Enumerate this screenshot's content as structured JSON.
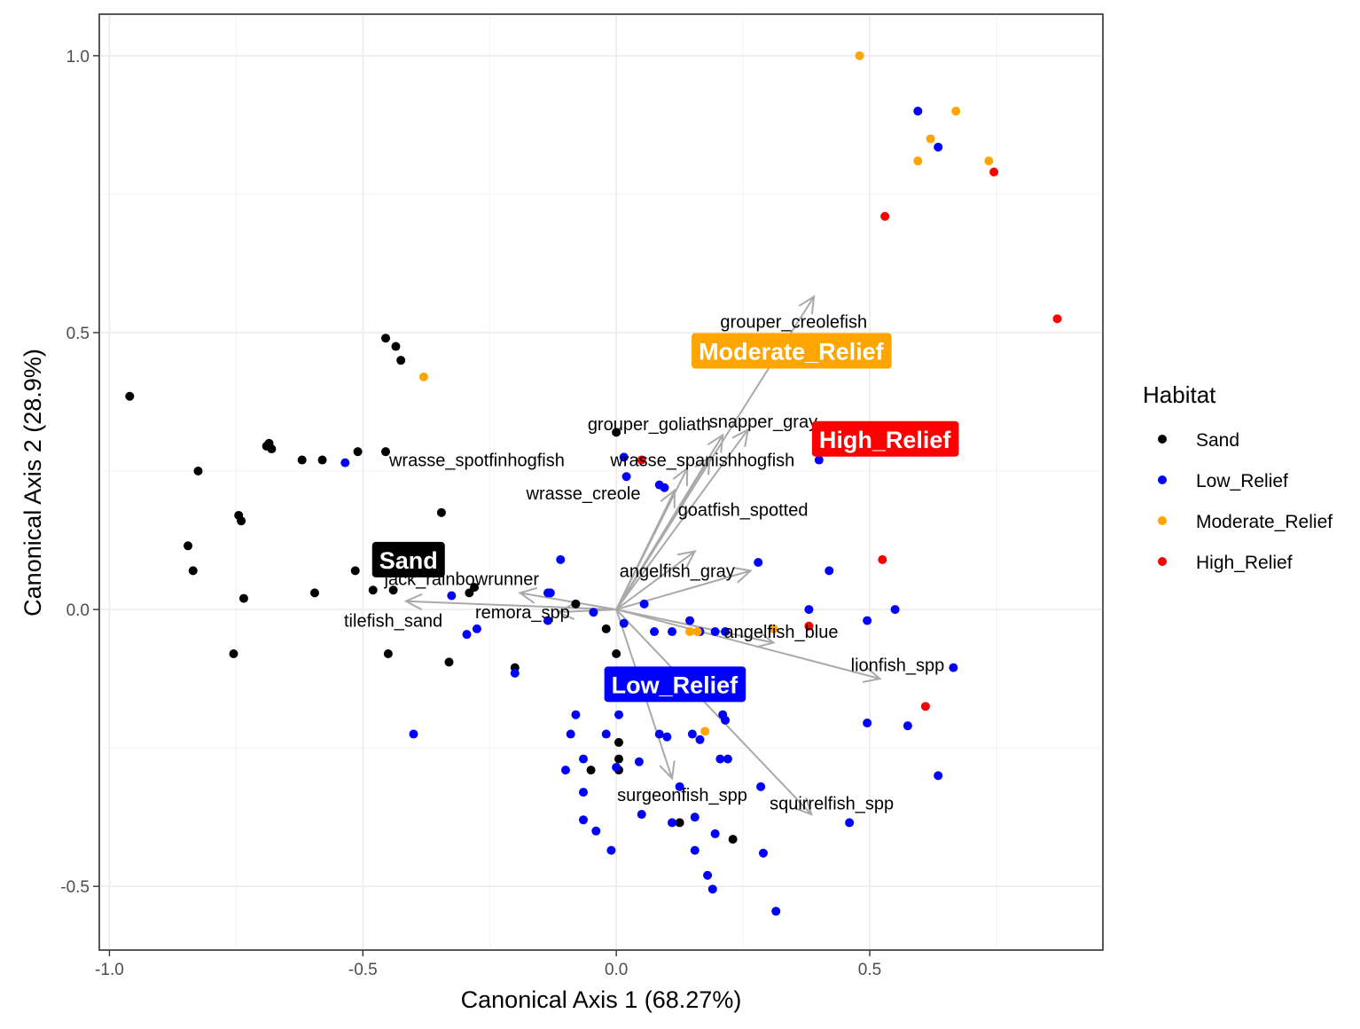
{
  "chart_data": {
    "type": "scatter",
    "title": "",
    "xlabel": "Canonical Axis 1 (68.27%)",
    "ylabel": "Canonical Axis 2 (28.9%)",
    "xlim": [
      -1.02,
      0.96
    ],
    "ylim": [
      -0.615,
      1.075
    ],
    "xticks": [
      -1.0,
      -0.5,
      0.0,
      0.5
    ],
    "xtick_labels": [
      "-1.0",
      "-0.5",
      "0.0",
      "0.5"
    ],
    "yticks": [
      -0.5,
      0.0,
      0.5,
      1.0
    ],
    "ytick_labels": [
      "-0.5",
      "0.0",
      "0.5",
      "1.0"
    ],
    "grid": true,
    "legend": {
      "title": "Habitat",
      "position": "right",
      "entries": [
        {
          "name": "Sand",
          "color": "#000000"
        },
        {
          "name": "Low_Relief",
          "color": "#0000ff"
        },
        {
          "name": "Moderate_Relief",
          "color": "#ffa500"
        },
        {
          "name": "High_Relief",
          "color": "#ff0000"
        }
      ]
    },
    "series": [
      {
        "name": "Sand",
        "color": "#000000",
        "points": [
          [
            -0.96,
            0.385
          ],
          [
            -0.825,
            0.25
          ],
          [
            -0.845,
            0.115
          ],
          [
            -0.835,
            0.07
          ],
          [
            -0.745,
            0.17
          ],
          [
            -0.74,
            0.16
          ],
          [
            -0.735,
            0.02
          ],
          [
            -0.755,
            -0.08
          ],
          [
            -0.685,
            0.3
          ],
          [
            -0.69,
            0.295
          ],
          [
            -0.68,
            0.29
          ],
          [
            -0.62,
            0.27
          ],
          [
            -0.58,
            0.27
          ],
          [
            -0.595,
            0.03
          ],
          [
            -0.51,
            0.285
          ],
          [
            -0.515,
            0.07
          ],
          [
            -0.48,
            0.035
          ],
          [
            -0.455,
            0.49
          ],
          [
            -0.435,
            0.475
          ],
          [
            -0.425,
            0.45
          ],
          [
            -0.455,
            0.285
          ],
          [
            -0.44,
            0.035
          ],
          [
            -0.45,
            -0.08
          ],
          [
            -0.345,
            0.175
          ],
          [
            -0.33,
            -0.095
          ],
          [
            -0.29,
            0.03
          ],
          [
            -0.28,
            0.04
          ],
          [
            -0.2,
            -0.105
          ],
          [
            -0.08,
            0.01
          ],
          [
            -0.02,
            -0.035
          ],
          [
            0.0,
            0.32
          ],
          [
            0.0,
            -0.08
          ],
          [
            0.005,
            -0.24
          ],
          [
            0.005,
            -0.27
          ],
          [
            -0.05,
            -0.29
          ],
          [
            0.005,
            -0.29
          ],
          [
            0.125,
            -0.385
          ],
          [
            0.23,
            -0.415
          ]
        ]
      },
      {
        "name": "Low_Relief",
        "color": "#0000ff",
        "points": [
          [
            -0.535,
            0.265
          ],
          [
            -0.325,
            0.025
          ],
          [
            -0.295,
            -0.045
          ],
          [
            -0.275,
            -0.035
          ],
          [
            -0.2,
            -0.115
          ],
          [
            -0.4,
            -0.225
          ],
          [
            -0.135,
            0.03
          ],
          [
            -0.13,
            0.03
          ],
          [
            -0.11,
            0.09
          ],
          [
            -0.135,
            -0.02
          ],
          [
            -0.045,
            -0.005
          ],
          [
            0.015,
            0.275
          ],
          [
            0.02,
            0.24
          ],
          [
            0.085,
            0.225
          ],
          [
            0.095,
            0.22
          ],
          [
            0.055,
            0.01
          ],
          [
            0.015,
            -0.025
          ],
          [
            0.075,
            -0.04
          ],
          [
            0.11,
            -0.04
          ],
          [
            0.145,
            -0.02
          ],
          [
            0.165,
            -0.04
          ],
          [
            0.195,
            -0.04
          ],
          [
            0.215,
            -0.04
          ],
          [
            0.28,
            0.085
          ],
          [
            0.38,
            0.0
          ],
          [
            0.42,
            0.07
          ],
          [
            0.4,
            0.27
          ],
          [
            0.495,
            -0.02
          ],
          [
            0.55,
            0.0
          ],
          [
            0.665,
            -0.105
          ],
          [
            0.495,
            -0.205
          ],
          [
            0.575,
            -0.21
          ],
          [
            0.635,
            -0.3
          ],
          [
            0.46,
            -0.385
          ],
          [
            0.595,
            0.9
          ],
          [
            0.635,
            0.835
          ],
          [
            -0.08,
            -0.19
          ],
          [
            -0.09,
            -0.225
          ],
          [
            0.005,
            -0.19
          ],
          [
            -0.02,
            -0.225
          ],
          [
            -0.065,
            -0.27
          ],
          [
            -0.1,
            -0.29
          ],
          [
            -0.065,
            -0.33
          ],
          [
            0.0,
            -0.285
          ],
          [
            0.045,
            -0.275
          ],
          [
            0.085,
            -0.225
          ],
          [
            0.1,
            -0.23
          ],
          [
            0.15,
            -0.225
          ],
          [
            0.165,
            -0.235
          ],
          [
            0.21,
            -0.19
          ],
          [
            0.215,
            -0.2
          ],
          [
            0.205,
            -0.27
          ],
          [
            0.22,
            -0.27
          ],
          [
            0.125,
            -0.32
          ],
          [
            0.285,
            -0.32
          ],
          [
            -0.065,
            -0.38
          ],
          [
            -0.04,
            -0.4
          ],
          [
            -0.01,
            -0.435
          ],
          [
            0.05,
            -0.37
          ],
          [
            0.11,
            -0.385
          ],
          [
            0.155,
            -0.375
          ],
          [
            0.155,
            -0.435
          ],
          [
            0.195,
            -0.405
          ],
          [
            0.18,
            -0.48
          ],
          [
            0.19,
            -0.505
          ],
          [
            0.29,
            -0.44
          ],
          [
            0.315,
            -0.545
          ]
        ]
      },
      {
        "name": "Moderate_Relief",
        "color": "#ffa500",
        "points": [
          [
            0.48,
            1.0
          ],
          [
            0.67,
            0.9
          ],
          [
            0.62,
            0.85
          ],
          [
            0.595,
            0.81
          ],
          [
            0.735,
            0.81
          ],
          [
            -0.38,
            0.42
          ],
          [
            0.145,
            -0.04
          ],
          [
            0.16,
            -0.04
          ],
          [
            0.31,
            -0.035
          ],
          [
            0.175,
            -0.22
          ]
        ]
      },
      {
        "name": "High_Relief",
        "color": "#ff0000",
        "points": [
          [
            0.745,
            0.79
          ],
          [
            0.53,
            0.71
          ],
          [
            0.87,
            0.525
          ],
          [
            0.05,
            0.27
          ],
          [
            0.525,
            0.09
          ],
          [
            0.38,
            -0.03
          ],
          [
            0.61,
            -0.175
          ]
        ]
      }
    ],
    "vectors": [
      {
        "label": "grouper_creolefish",
        "end": [
          0.39,
          0.565
        ],
        "label_pos": [
          0.35,
          0.52
        ]
      },
      {
        "label": "snapper_gray",
        "end": [
          0.26,
          0.325
        ],
        "label_pos": [
          0.29,
          0.34
        ]
      },
      {
        "label": "grouper_goliath",
        "end": [
          0.21,
          0.315
        ],
        "label_pos": [
          0.065,
          0.335
        ]
      },
      {
        "label": "wrasse_spanishhogfish",
        "end": [
          0.185,
          0.275
        ],
        "label_pos": [
          0.17,
          0.27
        ]
      },
      {
        "label": "wrasse_spotfinhogfish",
        "end": [
          0.14,
          0.255
        ],
        "label_pos": [
          -0.275,
          0.27
        ]
      },
      {
        "label": "wrasse_creole",
        "end": [
          0.115,
          0.215
        ],
        "label_pos": [
          -0.065,
          0.21
        ]
      },
      {
        "label": "goatfish_spotted",
        "end": [
          0.155,
          0.105
        ],
        "label_pos": [
          0.25,
          0.18
        ]
      },
      {
        "label": "angelfish_gray",
        "end": [
          0.265,
          0.07
        ],
        "label_pos": [
          0.12,
          0.07
        ]
      },
      {
        "label": "jack_rainbowrunner",
        "end": [
          -0.19,
          0.03
        ],
        "label_pos": [
          -0.305,
          0.055
        ]
      },
      {
        "label": "tilefish_sand",
        "end": [
          -0.415,
          0.015
        ],
        "label_pos": [
          -0.44,
          -0.02
        ]
      },
      {
        "label": "remora_spp",
        "end": [
          -0.115,
          -0.005
        ],
        "label_pos": [
          -0.185,
          -0.005
        ]
      },
      {
        "label": "angelfish_blue",
        "end": [
          0.31,
          -0.06
        ],
        "label_pos": [
          0.325,
          -0.04
        ]
      },
      {
        "label": "lionfish_spp",
        "end": [
          0.52,
          -0.125
        ],
        "label_pos": [
          0.555,
          -0.1
        ]
      },
      {
        "label": "surgeonfish_spp",
        "end": [
          0.11,
          -0.305
        ],
        "label_pos": [
          0.13,
          -0.335
        ]
      },
      {
        "label": "squirrelfish_spp",
        "end": [
          0.385,
          -0.37
        ],
        "label_pos": [
          0.425,
          -0.35
        ]
      }
    ],
    "group_labels": [
      {
        "label": "Sand",
        "pos": [
          -0.41,
          0.09
        ],
        "color": "#000000"
      },
      {
        "label": "Moderate_Relief",
        "pos": [
          0.345,
          0.467
        ],
        "color": "#ffa500"
      },
      {
        "label": "High_Relief",
        "pos": [
          0.53,
          0.308
        ],
        "color": "#ff0000"
      },
      {
        "label": "Low_Relief",
        "pos": [
          0.115,
          -0.135
        ],
        "color": "#0000ff"
      }
    ]
  }
}
